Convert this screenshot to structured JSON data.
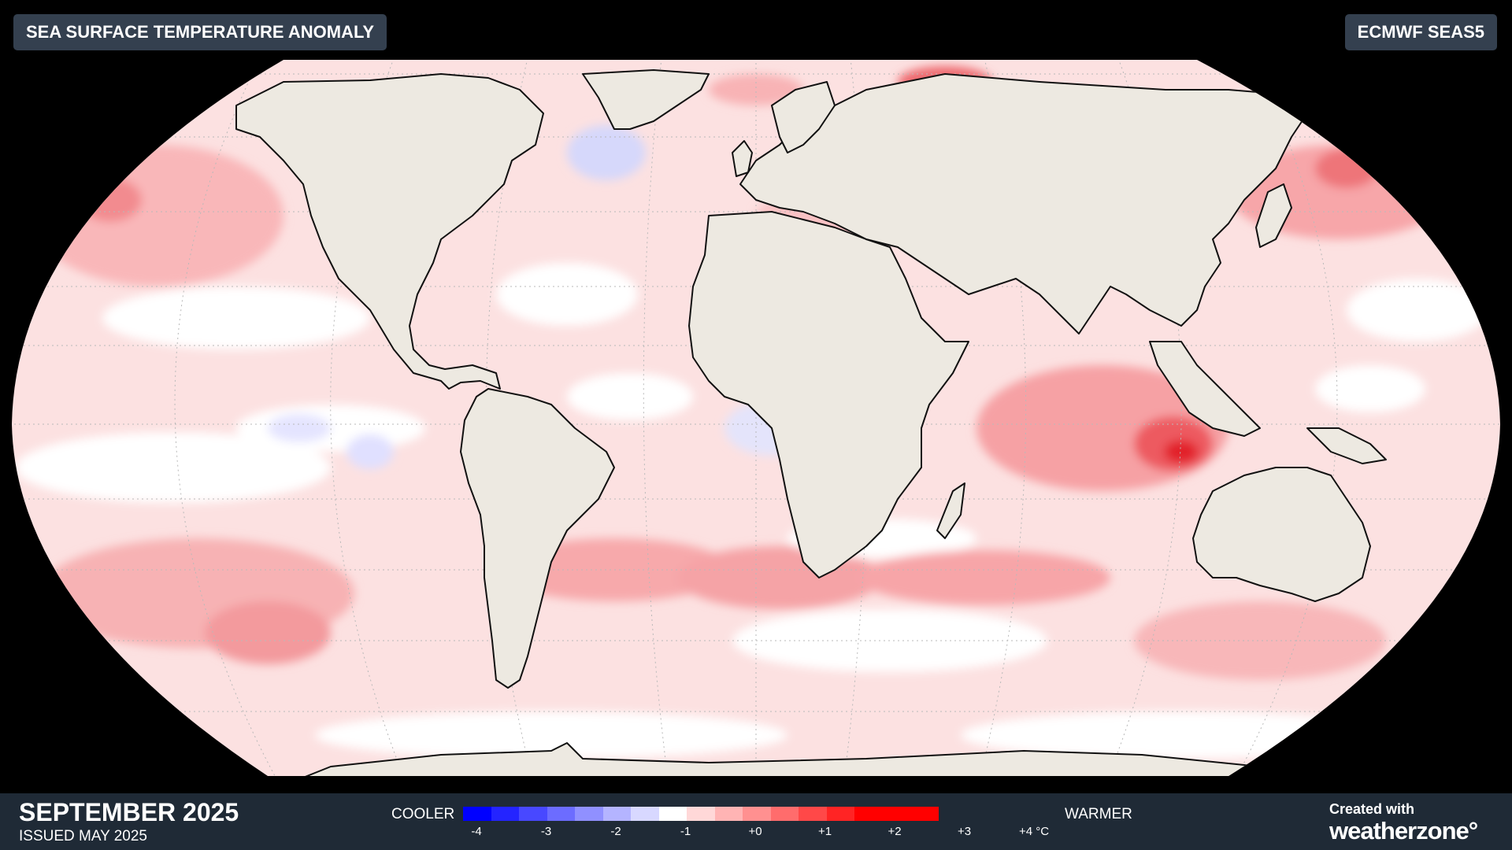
{
  "header": {
    "title": "SEA SURFACE TEMPERATURE ANOMALY",
    "model": "ECMWF SEAS5"
  },
  "footer": {
    "month": "SEPTEMBER 2025",
    "issued": "ISSUED MAY 2025",
    "cooler_label": "COOLER",
    "warmer_label": "WARMER",
    "created_with": "Created with",
    "brand_part1": "weather",
    "brand_part2": "zone°"
  },
  "legend": {
    "ticks": [
      "-4",
      "-3",
      "-2",
      "-1",
      "+0",
      "+1",
      "+2",
      "+3",
      "+4 °C"
    ],
    "colors": [
      "#0000ff",
      "#2424ff",
      "#4848ff",
      "#6c6cff",
      "#9090ff",
      "#b4b4ff",
      "#d8d8ff",
      "#ffffff",
      "#ffd8d8",
      "#ffb4b4",
      "#ff9090",
      "#ff6c6c",
      "#ff4848",
      "#ff2424",
      "#ff0000",
      "#ff0000",
      "#ff0000"
    ]
  },
  "colors": {
    "ocean_base": "#fce3e3",
    "land": "#ede9e1",
    "coast": "#111111",
    "badge_bg": "#34404f",
    "footer_bg": "#1f2a36"
  }
}
